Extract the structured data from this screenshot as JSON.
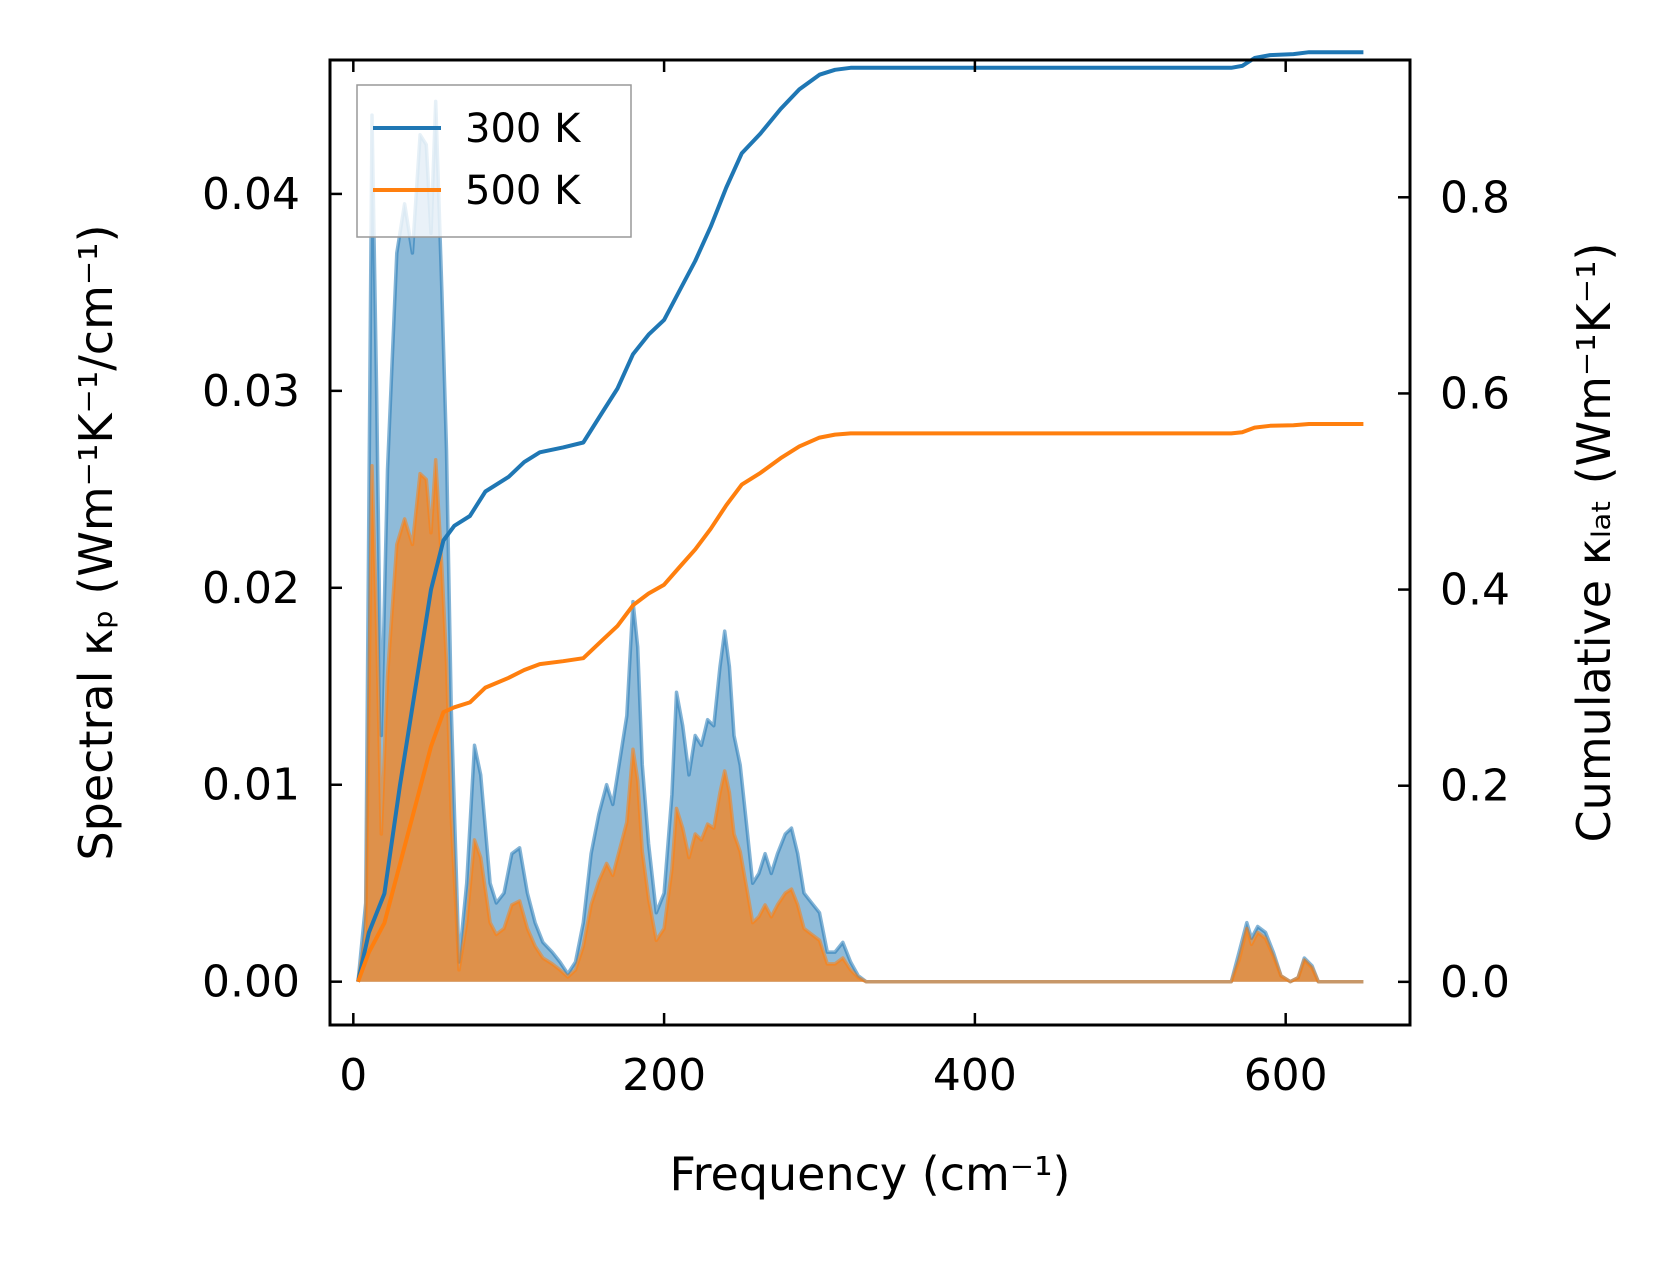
{
  "chart_data": {
    "type": "area",
    "xlabel": "Frequency (cm⁻¹)",
    "ylabel_left": "Spectral κₚ (Wm⁻¹K⁻¹/cm⁻¹)",
    "ylabel_right": "Cumulative κₗₐₜ (Wm⁻¹K⁻¹)",
    "xlim": [
      -15,
      680
    ],
    "ylim_left": [
      -0.0022,
      0.0468
    ],
    "ylim_right": [
      -0.044,
      0.94
    ],
    "x_ticks": [
      0,
      200,
      400,
      600
    ],
    "x_tick_labels": [
      "0",
      "200",
      "400",
      "600"
    ],
    "y_left_ticks": [
      0.0,
      0.01,
      0.02,
      0.03,
      0.04
    ],
    "y_left_tick_labels": [
      "0.00",
      "0.01",
      "0.02",
      "0.03",
      "0.04"
    ],
    "y_right_ticks": [
      0.0,
      0.2,
      0.4,
      0.6,
      0.8
    ],
    "y_right_tick_labels": [
      "0.0",
      "0.2",
      "0.4",
      "0.6",
      "0.8"
    ],
    "grid": false,
    "legend_position": "top-left",
    "series": [
      {
        "name": "300 K",
        "color": "#1f77b4",
        "spectral": [
          [
            3,
            0.0
          ],
          [
            8,
            0.004
          ],
          [
            12,
            0.044
          ],
          [
            15,
            0.03
          ],
          [
            18,
            0.0125
          ],
          [
            22,
            0.026
          ],
          [
            28,
            0.037
          ],
          [
            33,
            0.0395
          ],
          [
            38,
            0.037
          ],
          [
            43,
            0.043
          ],
          [
            47,
            0.0425
          ],
          [
            50,
            0.038
          ],
          [
            53,
            0.0447
          ],
          [
            57,
            0.035
          ],
          [
            60,
            0.027
          ],
          [
            63,
            0.014
          ],
          [
            68,
            0.001
          ],
          [
            73,
            0.005
          ],
          [
            78,
            0.012
          ],
          [
            82,
            0.0105
          ],
          [
            88,
            0.005
          ],
          [
            92,
            0.004
          ],
          [
            97,
            0.0045
          ],
          [
            102,
            0.0065
          ],
          [
            107,
            0.0068
          ],
          [
            112,
            0.0045
          ],
          [
            117,
            0.003
          ],
          [
            122,
            0.002
          ],
          [
            128,
            0.0015
          ],
          [
            133,
            0.001
          ],
          [
            138,
            0.0004
          ],
          [
            143,
            0.001
          ],
          [
            148,
            0.003
          ],
          [
            153,
            0.0065
          ],
          [
            158,
            0.0085
          ],
          [
            163,
            0.01
          ],
          [
            167,
            0.009
          ],
          [
            172,
            0.0115
          ],
          [
            176,
            0.0135
          ],
          [
            180,
            0.0193
          ],
          [
            183,
            0.017
          ],
          [
            186,
            0.011
          ],
          [
            190,
            0.007
          ],
          [
            195,
            0.0035
          ],
          [
            200,
            0.0045
          ],
          [
            205,
            0.0095
          ],
          [
            208,
            0.0147
          ],
          [
            212,
            0.013
          ],
          [
            216,
            0.0105
          ],
          [
            220,
            0.0125
          ],
          [
            224,
            0.012
          ],
          [
            228,
            0.0133
          ],
          [
            232,
            0.013
          ],
          [
            236,
            0.016
          ],
          [
            239,
            0.0178
          ],
          [
            242,
            0.016
          ],
          [
            245,
            0.0125
          ],
          [
            249,
            0.011
          ],
          [
            253,
            0.008
          ],
          [
            257,
            0.005
          ],
          [
            261,
            0.0055
          ],
          [
            265,
            0.0065
          ],
          [
            269,
            0.0055
          ],
          [
            273,
            0.0065
          ],
          [
            278,
            0.0075
          ],
          [
            282,
            0.0078
          ],
          [
            286,
            0.0065
          ],
          [
            290,
            0.0045
          ],
          [
            295,
            0.004
          ],
          [
            300,
            0.0035
          ],
          [
            305,
            0.0015
          ],
          [
            310,
            0.0015
          ],
          [
            315,
            0.002
          ],
          [
            320,
            0.001
          ],
          [
            325,
            0.0003
          ],
          [
            330,
            0.0
          ],
          [
            565,
            0.0
          ],
          [
            570,
            0.0015
          ],
          [
            575,
            0.003
          ],
          [
            578,
            0.0022
          ],
          [
            582,
            0.0028
          ],
          [
            587,
            0.0025
          ],
          [
            592,
            0.0015
          ],
          [
            597,
            0.0003
          ],
          [
            603,
            0.0
          ],
          [
            608,
            0.0002
          ],
          [
            612,
            0.0012
          ],
          [
            617,
            0.0008
          ],
          [
            621,
            0.0
          ],
          [
            650,
            0.0
          ]
        ],
        "cumulative": [
          [
            3,
            0.0
          ],
          [
            10,
            0.05
          ],
          [
            20,
            0.09
          ],
          [
            30,
            0.2
          ],
          [
            40,
            0.3
          ],
          [
            50,
            0.4
          ],
          [
            58,
            0.45
          ],
          [
            65,
            0.465
          ],
          [
            75,
            0.475
          ],
          [
            85,
            0.5
          ],
          [
            100,
            0.515
          ],
          [
            110,
            0.53
          ],
          [
            120,
            0.54
          ],
          [
            135,
            0.545
          ],
          [
            148,
            0.55
          ],
          [
            160,
            0.58
          ],
          [
            170,
            0.605
          ],
          [
            180,
            0.64
          ],
          [
            190,
            0.66
          ],
          [
            200,
            0.675
          ],
          [
            210,
            0.705
          ],
          [
            220,
            0.735
          ],
          [
            230,
            0.77
          ],
          [
            240,
            0.81
          ],
          [
            250,
            0.845
          ],
          [
            262,
            0.865
          ],
          [
            275,
            0.89
          ],
          [
            287,
            0.91
          ],
          [
            300,
            0.925
          ],
          [
            310,
            0.93
          ],
          [
            320,
            0.932
          ],
          [
            565,
            0.932
          ],
          [
            572,
            0.934
          ],
          [
            580,
            0.942
          ],
          [
            590,
            0.945
          ],
          [
            605,
            0.946
          ],
          [
            615,
            0.948
          ],
          [
            650,
            0.948
          ]
        ]
      },
      {
        "name": "500 K",
        "color": "#ff7f0e",
        "spectral": [
          [
            3,
            0.0
          ],
          [
            8,
            0.0025
          ],
          [
            12,
            0.0262
          ],
          [
            15,
            0.018
          ],
          [
            18,
            0.0075
          ],
          [
            22,
            0.0155
          ],
          [
            28,
            0.0222
          ],
          [
            33,
            0.0235
          ],
          [
            38,
            0.0222
          ],
          [
            43,
            0.0258
          ],
          [
            47,
            0.0255
          ],
          [
            50,
            0.0228
          ],
          [
            53,
            0.0265
          ],
          [
            57,
            0.021
          ],
          [
            60,
            0.0162
          ],
          [
            63,
            0.0084
          ],
          [
            68,
            0.0006
          ],
          [
            73,
            0.003
          ],
          [
            78,
            0.0072
          ],
          [
            82,
            0.0063
          ],
          [
            88,
            0.003
          ],
          [
            92,
            0.0024
          ],
          [
            97,
            0.0027
          ],
          [
            102,
            0.0039
          ],
          [
            107,
            0.0041
          ],
          [
            112,
            0.0027
          ],
          [
            117,
            0.0018
          ],
          [
            122,
            0.0012
          ],
          [
            128,
            0.0009
          ],
          [
            133,
            0.0006
          ],
          [
            138,
            0.00024
          ],
          [
            143,
            0.0006
          ],
          [
            148,
            0.0018
          ],
          [
            153,
            0.0039
          ],
          [
            158,
            0.0051
          ],
          [
            163,
            0.006
          ],
          [
            167,
            0.0054
          ],
          [
            172,
            0.0069
          ],
          [
            176,
            0.0081
          ],
          [
            180,
            0.0118
          ],
          [
            183,
            0.0102
          ],
          [
            186,
            0.0066
          ],
          [
            190,
            0.0042
          ],
          [
            195,
            0.0021
          ],
          [
            200,
            0.0027
          ],
          [
            205,
            0.0057
          ],
          [
            208,
            0.0088
          ],
          [
            212,
            0.0078
          ],
          [
            216,
            0.0063
          ],
          [
            220,
            0.0075
          ],
          [
            224,
            0.0072
          ],
          [
            228,
            0.008
          ],
          [
            232,
            0.0078
          ],
          [
            236,
            0.0096
          ],
          [
            239,
            0.0107
          ],
          [
            242,
            0.0096
          ],
          [
            245,
            0.0075
          ],
          [
            249,
            0.0066
          ],
          [
            253,
            0.0048
          ],
          [
            257,
            0.003
          ],
          [
            261,
            0.0033
          ],
          [
            265,
            0.0039
          ],
          [
            269,
            0.0033
          ],
          [
            273,
            0.0039
          ],
          [
            278,
            0.0045
          ],
          [
            282,
            0.0047
          ],
          [
            286,
            0.0039
          ],
          [
            290,
            0.0027
          ],
          [
            295,
            0.0024
          ],
          [
            300,
            0.0021
          ],
          [
            305,
            0.0009
          ],
          [
            310,
            0.0009
          ],
          [
            315,
            0.0012
          ],
          [
            320,
            0.0006
          ],
          [
            325,
            0.0002
          ],
          [
            330,
            0.0
          ],
          [
            565,
            0.0
          ],
          [
            570,
            0.0011
          ],
          [
            575,
            0.0027
          ],
          [
            578,
            0.0019
          ],
          [
            582,
            0.0025
          ],
          [
            587,
            0.0022
          ],
          [
            592,
            0.0013
          ],
          [
            597,
            0.0003
          ],
          [
            603,
            0.0
          ],
          [
            608,
            0.0002
          ],
          [
            612,
            0.0011
          ],
          [
            617,
            0.0007
          ],
          [
            621,
            0.0
          ],
          [
            650,
            0.0
          ]
        ],
        "cumulative": [
          [
            3,
            0.0
          ],
          [
            10,
            0.03
          ],
          [
            20,
            0.06
          ],
          [
            30,
            0.12
          ],
          [
            40,
            0.18
          ],
          [
            50,
            0.24
          ],
          [
            58,
            0.275
          ],
          [
            65,
            0.28
          ],
          [
            75,
            0.285
          ],
          [
            85,
            0.3
          ],
          [
            100,
            0.31
          ],
          [
            110,
            0.318
          ],
          [
            120,
            0.324
          ],
          [
            135,
            0.327
          ],
          [
            148,
            0.33
          ],
          [
            160,
            0.348
          ],
          [
            170,
            0.363
          ],
          [
            180,
            0.384
          ],
          [
            190,
            0.396
          ],
          [
            200,
            0.405
          ],
          [
            210,
            0.423
          ],
          [
            220,
            0.441
          ],
          [
            230,
            0.462
          ],
          [
            240,
            0.486
          ],
          [
            250,
            0.507
          ],
          [
            262,
            0.519
          ],
          [
            275,
            0.534
          ],
          [
            287,
            0.546
          ],
          [
            300,
            0.555
          ],
          [
            310,
            0.558
          ],
          [
            320,
            0.5592
          ],
          [
            565,
            0.5592
          ],
          [
            572,
            0.5604
          ],
          [
            580,
            0.5652
          ],
          [
            590,
            0.567
          ],
          [
            605,
            0.5676
          ],
          [
            615,
            0.5688
          ],
          [
            650,
            0.5688
          ]
        ]
      }
    ]
  }
}
